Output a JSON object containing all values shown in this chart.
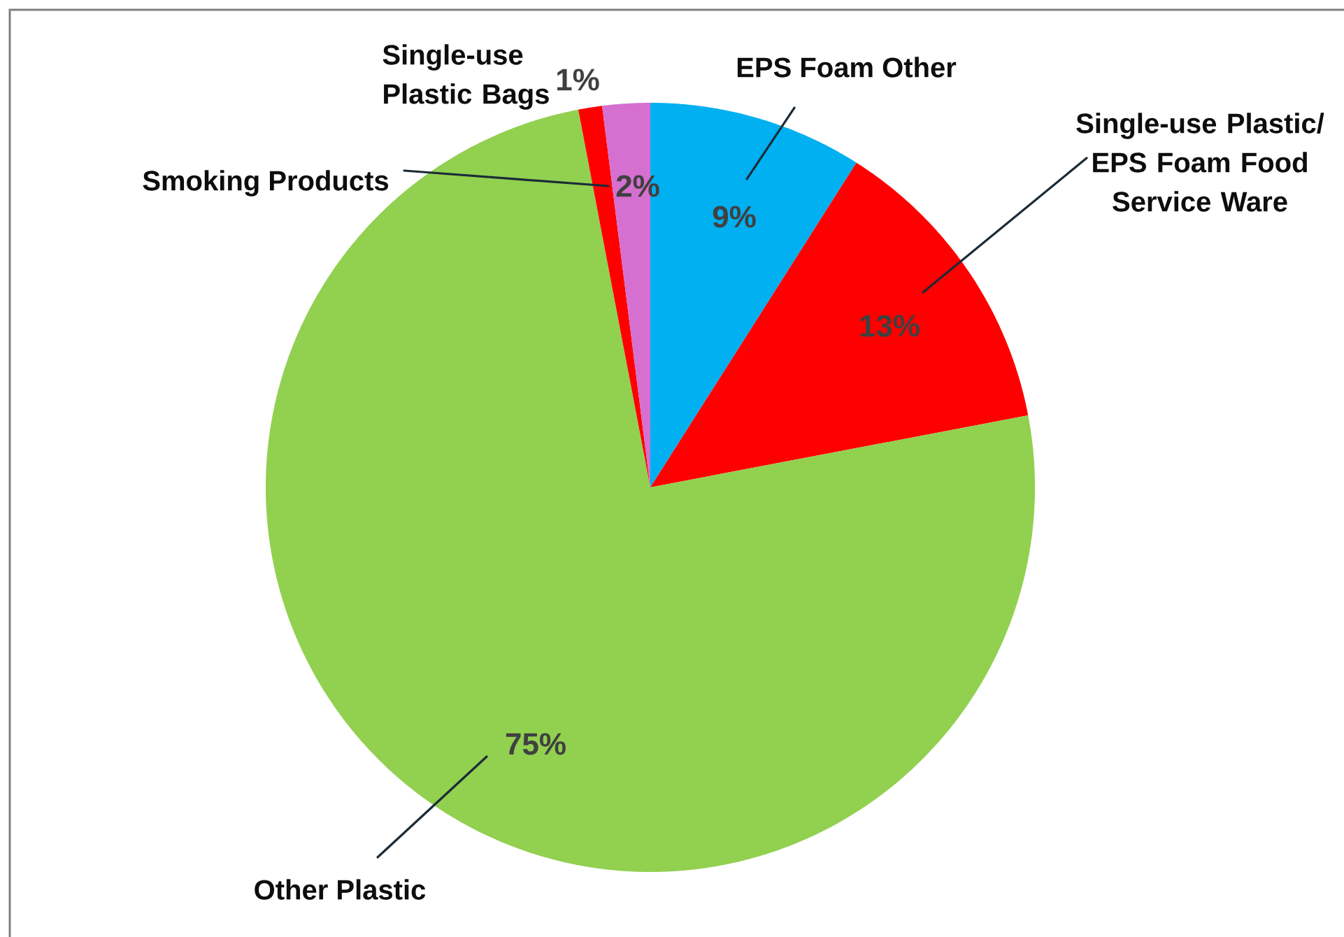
{
  "chart_data": {
    "type": "pie",
    "categories": [
      "EPS Foam Other",
      "Single-use Plastic/ EPS Foam Food Service Ware",
      "Other Plastic",
      "Single-use Plastic Bags",
      "Smoking Products"
    ],
    "values": [
      9,
      13,
      75,
      1,
      2
    ],
    "colors": [
      "#00b0f0",
      "#ff0000",
      "#92d050",
      "#ff0000",
      "#d56fd0"
    ],
    "value_labels": [
      "9%",
      "13%",
      "75%",
      "1%",
      "2%"
    ],
    "legend": false
  }
}
